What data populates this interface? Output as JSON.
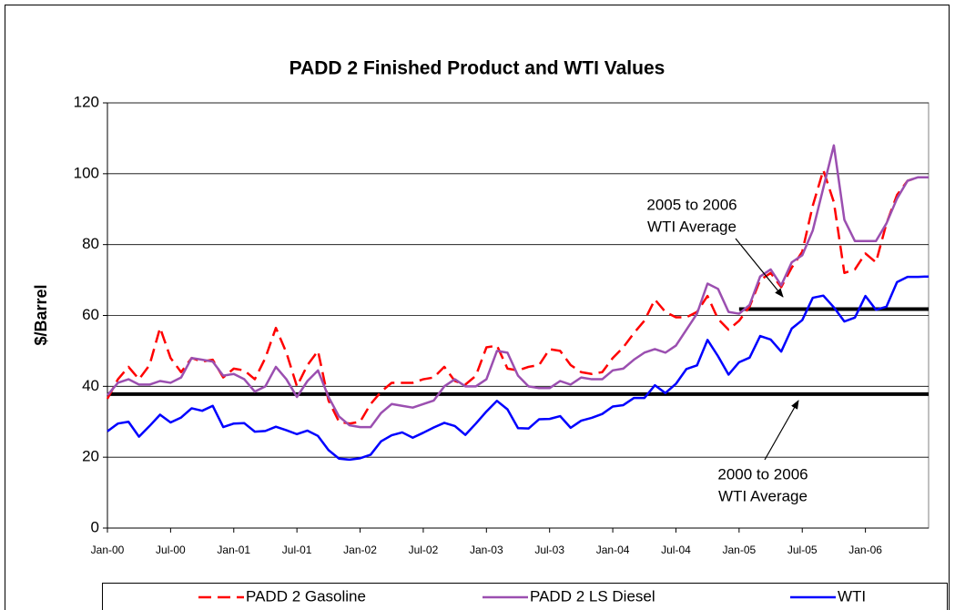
{
  "chart_data": {
    "type": "line",
    "title": "PADD 2 Finished Product and WTI Values",
    "y_label": "$/Barrel",
    "categories": [
      "Jan-00",
      null,
      null,
      null,
      null,
      null,
      "Jul-00",
      null,
      null,
      null,
      null,
      null,
      "Jan-01",
      null,
      null,
      null,
      null,
      null,
      "Jul-01",
      null,
      null,
      null,
      null,
      null,
      "Jan-02",
      null,
      null,
      null,
      null,
      null,
      "Jul-02",
      null,
      null,
      null,
      null,
      null,
      "Jan-03",
      null,
      null,
      null,
      null,
      null,
      "Jul-03",
      null,
      null,
      null,
      null,
      null,
      "Jan-04",
      null,
      null,
      null,
      null,
      null,
      "Jul-04",
      null,
      null,
      null,
      null,
      null,
      "Jan-05",
      null,
      null,
      null,
      null,
      null,
      "Jul-05",
      null,
      null,
      null,
      null,
      null,
      "Jan-06",
      null,
      null,
      null,
      null,
      null,
      null
    ],
    "series": [
      {
        "name": "PADD 2 Gasoline",
        "color": "#ff0000",
        "dashed": true,
        "values": [
          36.5,
          42,
          45.5,
          42,
          46,
          56.5,
          48,
          44,
          48,
          47,
          47.5,
          42.5,
          45,
          44.5,
          42,
          48,
          56.5,
          49.5,
          40,
          46,
          50,
          36,
          30,
          29.5,
          30,
          35,
          38.5,
          41,
          41,
          41,
          42,
          42.5,
          45.5,
          41.5,
          40.5,
          43,
          51,
          51.5,
          45,
          44.5,
          45.5,
          46,
          50.5,
          50,
          46,
          44,
          43.5,
          44,
          48,
          51,
          55,
          58.5,
          64.5,
          61,
          59.5,
          59.5,
          61,
          65.5,
          59,
          56,
          58.5,
          62.5,
          70,
          72,
          68,
          73.5,
          78,
          91,
          101,
          92,
          72,
          73,
          77.5,
          75,
          86,
          94,
          98,
          99,
          99
        ]
      },
      {
        "name": "PADD 2 LS Diesel",
        "color": "#9b4fb0",
        "dashed": false,
        "values": [
          37.5,
          41,
          42,
          40.5,
          40.5,
          41.5,
          41,
          42.5,
          48,
          47.5,
          47,
          43,
          43.5,
          42,
          38.5,
          40,
          45.5,
          42,
          37,
          41.5,
          44.5,
          37,
          31.5,
          29,
          28.5,
          28.5,
          32.5,
          35,
          34.5,
          34,
          35,
          36,
          40,
          42,
          40,
          40,
          42,
          50,
          49.5,
          43,
          40,
          39.5,
          39.5,
          41.5,
          40.5,
          42.5,
          42,
          42,
          44.5,
          45,
          47.5,
          49.5,
          50.5,
          49.5,
          51.5,
          56,
          60.5,
          69,
          67.5,
          61,
          60.5,
          63,
          71,
          73,
          68.5,
          75,
          77,
          84,
          96,
          108,
          87,
          81,
          81,
          81,
          86,
          93,
          98,
          99,
          99
        ]
      },
      {
        "name": "WTI",
        "color": "#0000ff",
        "dashed": false,
        "values": [
          27.3,
          29.5,
          30,
          25.8,
          28.8,
          32,
          29.8,
          31.2,
          33.8,
          33.1,
          34.5,
          28.5,
          29.5,
          29.6,
          27.2,
          27.4,
          28.6,
          27.6,
          26.5,
          27.5,
          26,
          22,
          19.6,
          19.3,
          19.7,
          20.7,
          24.5,
          26.2,
          27,
          25.5,
          26.9,
          28.4,
          29.7,
          28.8,
          26.3,
          29.5,
          32.9,
          35.9,
          33.5,
          28.2,
          28.1,
          30.7,
          30.8,
          31.6,
          28.3,
          30.3,
          31.1,
          32.2,
          34.3,
          34.7,
          36.7,
          36.7,
          40.3,
          38.1,
          40.7,
          44.9,
          45.9,
          53.1,
          48.5,
          43.3,
          46.8,
          48.1,
          54.2,
          53.2,
          49.8,
          56.3,
          58.7,
          65,
          65.6,
          62.3,
          58.3,
          59.4,
          65.5,
          61.6,
          62.5,
          69.4,
          70.9,
          70.9,
          71
        ]
      }
    ],
    "reference_lines": [
      {
        "value": 37.8,
        "from": "Jan-00",
        "label": [
          "2000 to 2006",
          "WTI Average"
        ]
      },
      {
        "value": 61.8,
        "from": "Jan-05",
        "label": [
          "2005 to 2006",
          "WTI Average"
        ]
      }
    ],
    "ylim": [
      0,
      120
    ],
    "yticks": [
      0,
      20,
      40,
      60,
      80,
      100,
      120
    ],
    "grid": true,
    "legend": "bottom"
  }
}
